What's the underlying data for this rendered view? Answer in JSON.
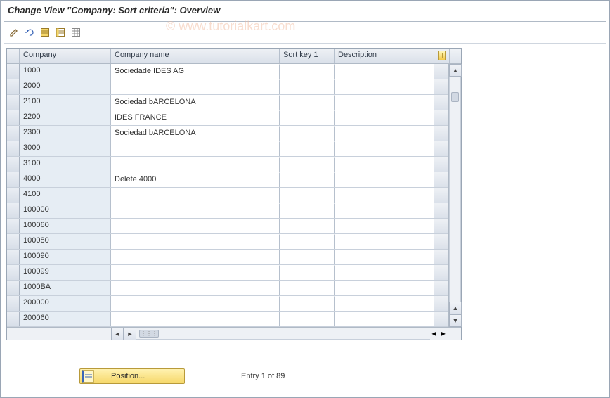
{
  "title": "Change View \"Company: Sort criteria\": Overview",
  "watermark": "© www.tutorialkart.com",
  "toolbar_icons": [
    "change-display",
    "undo",
    "select-all",
    "deselect-all",
    "table-settings"
  ],
  "columns": {
    "company": "Company",
    "company_name": "Company name",
    "sort_key": "Sort key 1",
    "description": "Description"
  },
  "rows": [
    {
      "company": "1000",
      "name": "Sociedade IDES AG",
      "sort": "",
      "desc": ""
    },
    {
      "company": "2000",
      "name": "",
      "sort": "",
      "desc": ""
    },
    {
      "company": "2100",
      "name": "Sociedad bARCELONA",
      "sort": "",
      "desc": ""
    },
    {
      "company": "2200",
      "name": "IDES FRANCE",
      "sort": "",
      "desc": ""
    },
    {
      "company": "2300",
      "name": "Sociedad bARCELONA",
      "sort": "",
      "desc": ""
    },
    {
      "company": "3000",
      "name": "",
      "sort": "",
      "desc": ""
    },
    {
      "company": "3100",
      "name": "",
      "sort": "",
      "desc": ""
    },
    {
      "company": "4000",
      "name": "Delete 4000",
      "sort": "",
      "desc": ""
    },
    {
      "company": "4100",
      "name": "",
      "sort": "",
      "desc": ""
    },
    {
      "company": "100000",
      "name": "",
      "sort": "",
      "desc": ""
    },
    {
      "company": "100060",
      "name": "",
      "sort": "",
      "desc": ""
    },
    {
      "company": "100080",
      "name": "",
      "sort": "",
      "desc": ""
    },
    {
      "company": "100090",
      "name": "",
      "sort": "",
      "desc": ""
    },
    {
      "company": "100099",
      "name": "",
      "sort": "",
      "desc": ""
    },
    {
      "company": "1000BA",
      "name": "",
      "sort": "",
      "desc": ""
    },
    {
      "company": "200000",
      "name": "",
      "sort": "",
      "desc": ""
    },
    {
      "company": "200060",
      "name": "",
      "sort": "",
      "desc": ""
    }
  ],
  "position_button": "Position...",
  "entry_text": "Entry 1 of 89",
  "colors": {
    "border": "#9aa6b5",
    "header_bg_from": "#f0f3f7",
    "header_bg_to": "#dde3ec",
    "row_bg": "#f8fafc",
    "cell_input_bg": "#ffffff",
    "cell_key_bg": "#e6edf4",
    "button_gold_from": "#fff2b0",
    "button_gold_to": "#f6d86a"
  }
}
